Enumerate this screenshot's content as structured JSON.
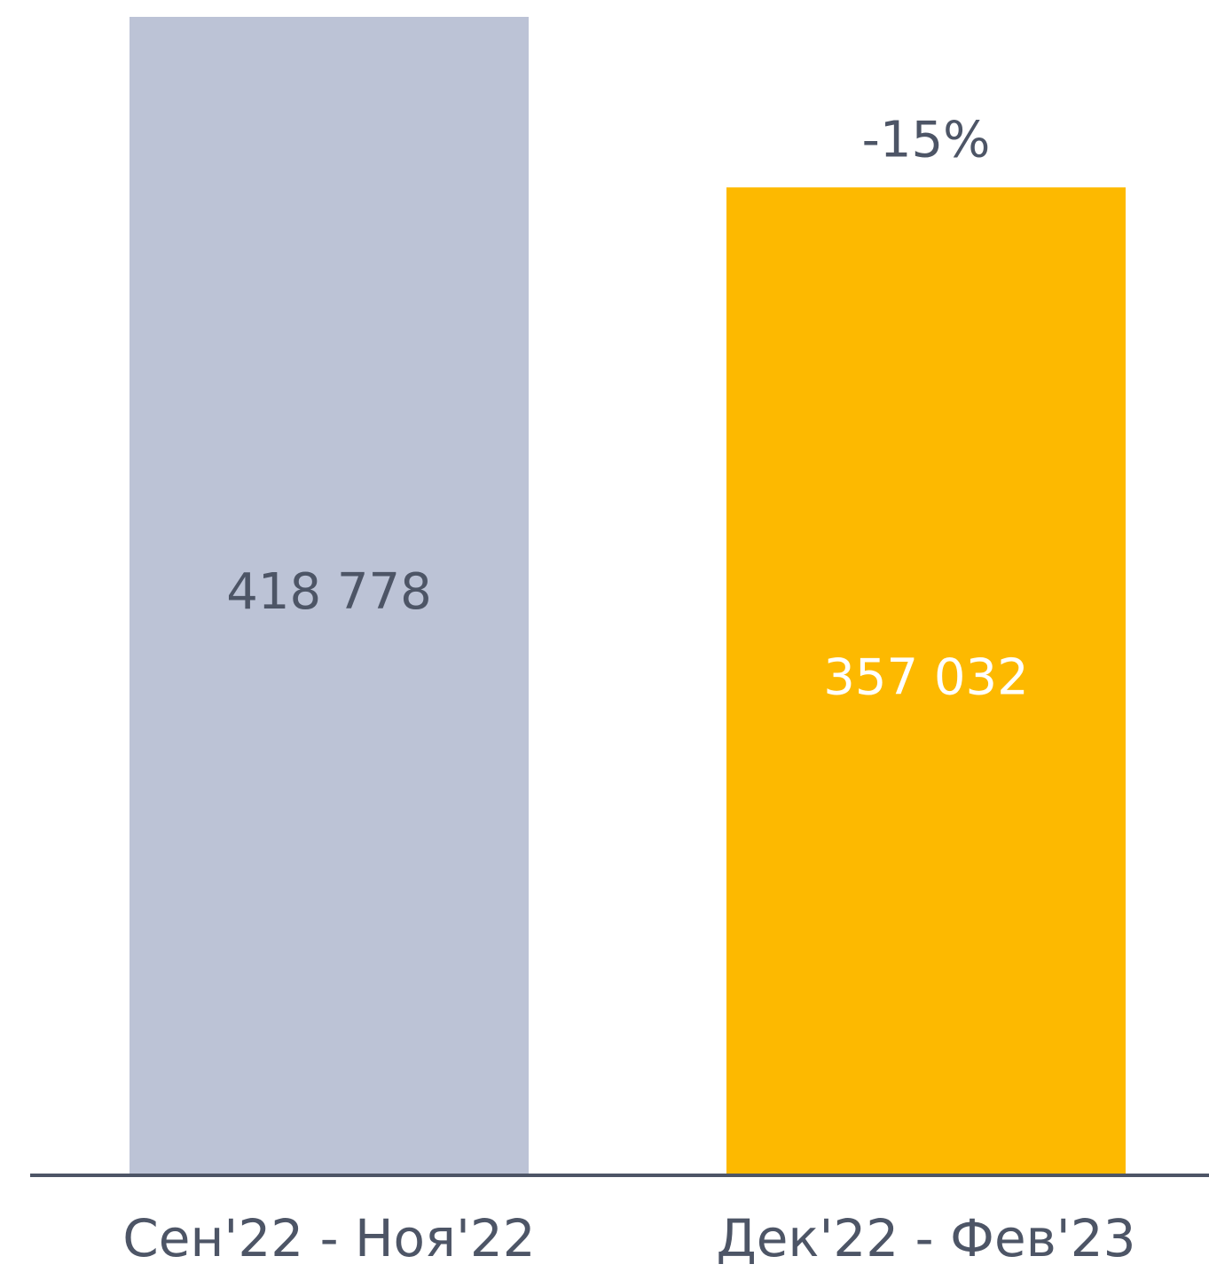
{
  "chart_data": {
    "type": "bar",
    "categories": [
      "Сен'22 - Ноя'22",
      "Дек'22 - Фев'23"
    ],
    "values": [
      418778,
      357032
    ],
    "value_labels": [
      "418 778",
      "357 032"
    ],
    "colors": [
      "#bcc3d6",
      "#fdb900"
    ],
    "annotation": "-15%"
  }
}
